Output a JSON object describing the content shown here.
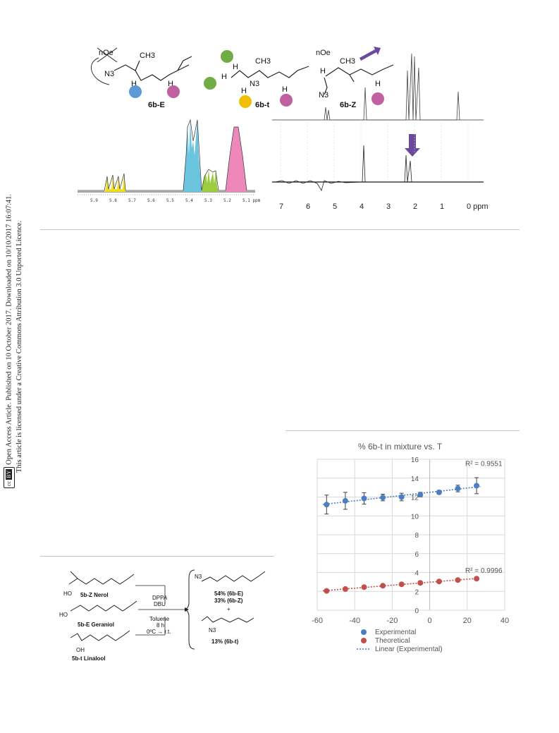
{
  "sidebar": {
    "line1": "Open Access Article. Published on 10 October 2017. Downloaded on 10/10/2017 16:07:41.",
    "line2": "This article is licensed under a Creative Commons Attribution 3.0 Unported Licence.",
    "badge_cc": "cc",
    "badge_by": "BY"
  },
  "structures": {
    "noe": "nOe",
    "ch3": "CH3",
    "n3": "N3",
    "h": "H",
    "label_E": "6b-E",
    "label_t": "6b-t",
    "label_Z": "6b-Z"
  },
  "nmr_left": {
    "ticks": [
      "5.9",
      "5.8",
      "5.7",
      "5.6",
      "5.5",
      "5.4",
      "5.3",
      "5.2",
      "5.1 ppm"
    ]
  },
  "nmr_right": {
    "ticks": [
      "7",
      "6",
      "5",
      "4",
      "3",
      "2",
      "1",
      "0 ppm"
    ]
  },
  "scheme": {
    "sm1": "5b-Z Nerol",
    "sm2": "5b-E Geraniol",
    "sm3": "5b-t Linalool",
    "ho": "HO",
    "oh": "OH",
    "n3": "N3",
    "reagents_top": [
      "DPPA",
      "DBU"
    ],
    "reagents_bottom": [
      "Toluene",
      "8 h",
      "0ºC → r.t."
    ],
    "prod1_a": "54% (6b-E)",
    "prod1_b": "33% (6b-Z)",
    "plus": "+",
    "prod2": "13% (6b-t)"
  },
  "chart_data": {
    "type": "scatter",
    "title": "% 6b-t in mixture vs. T",
    "xlim": [
      -60,
      40
    ],
    "ylim": [
      0,
      16
    ],
    "x_ticks": [
      -60,
      -40,
      -20,
      0,
      20,
      40
    ],
    "y_ticks": [
      0,
      2,
      4,
      6,
      8,
      10,
      12,
      14,
      16
    ],
    "grid": true,
    "legend_position": "bottom",
    "series": [
      {
        "name": "Experimental",
        "color": "#4a7fc1",
        "x": [
          -55,
          -45,
          -35,
          -25,
          -15,
          -5,
          5,
          15,
          25
        ],
        "y": [
          11.2,
          11.6,
          11.85,
          11.95,
          12.0,
          12.25,
          12.5,
          12.9,
          13.2
        ],
        "error": [
          1.0,
          0.9,
          0.6,
          0.35,
          0.4,
          0.25,
          0.2,
          0.35,
          0.85
        ],
        "r2": "R² = 0.9551"
      },
      {
        "name": "Theoretical",
        "color": "#c0504d",
        "x": [
          -55,
          -45,
          -35,
          -25,
          -15,
          -5,
          5,
          15,
          25
        ],
        "y": [
          2.05,
          2.25,
          2.45,
          2.6,
          2.75,
          2.9,
          3.05,
          3.2,
          3.35
        ],
        "r2": "R² = 0.9996"
      }
    ],
    "trendline_label": "Linear (Experimental)"
  }
}
